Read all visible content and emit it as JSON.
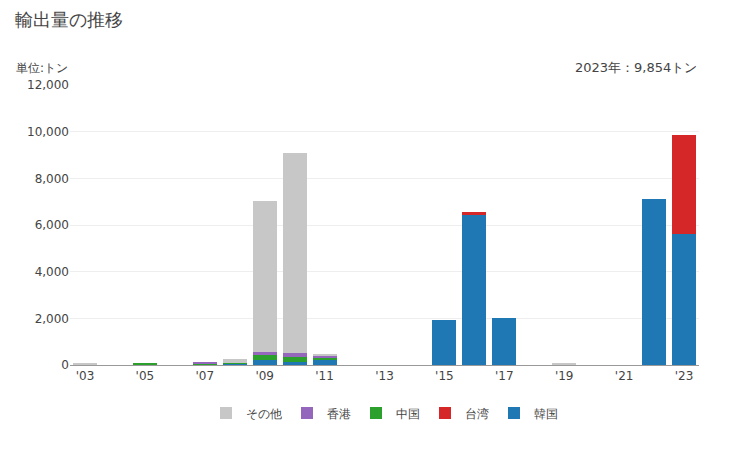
{
  "chart_data": {
    "type": "bar",
    "stacked": true,
    "title": "輸出量の推移",
    "subtitle": "単位:トン",
    "annotation": "2023年：9,854トン",
    "categories": [
      "'03",
      null,
      "'05",
      null,
      "'07",
      null,
      "'09",
      null,
      "'11",
      null,
      "'13",
      null,
      "'15",
      null,
      "'17",
      null,
      "'19",
      null,
      "'21",
      null,
      "'23"
    ],
    "series": [
      {
        "name": "韓国",
        "color": "#1F77B4",
        "values": [
          10,
          0,
          10,
          0,
          0,
          50,
          200,
          150,
          200,
          0,
          0,
          0,
          1950,
          6450,
          2000,
          0,
          0,
          0,
          0,
          7100,
          5600
        ]
      },
      {
        "name": "台湾",
        "color": "#D62728",
        "values": [
          0,
          0,
          0,
          0,
          0,
          0,
          0,
          0,
          0,
          0,
          0,
          0,
          0,
          100,
          0,
          0,
          0,
          0,
          0,
          0,
          4254
        ]
      },
      {
        "name": "中国",
        "color": "#2CA02C",
        "values": [
          0,
          0,
          80,
          0,
          30,
          50,
          250,
          200,
          100,
          0,
          0,
          0,
          0,
          0,
          0,
          0,
          0,
          0,
          0,
          0,
          0
        ]
      },
      {
        "name": "香港",
        "color": "#9467BD",
        "values": [
          0,
          0,
          0,
          0,
          100,
          0,
          100,
          150,
          100,
          0,
          0,
          0,
          0,
          0,
          0,
          0,
          0,
          0,
          0,
          0,
          0
        ]
      },
      {
        "name": "その他",
        "color": "#C7C7C7",
        "values": [
          50,
          0,
          0,
          0,
          0,
          150,
          6500,
          8600,
          50,
          0,
          0,
          0,
          0,
          0,
          0,
          0,
          50,
          0,
          0,
          0,
          0
        ]
      }
    ],
    "ylim": [
      0,
      12000
    ],
    "yticks": [
      0,
      {
        "value": 2000,
        "label": "2,000"
      },
      {
        "value": 4000,
        "label": "4,000"
      },
      {
        "value": 6000,
        "label": "6,000"
      },
      {
        "value": 8000,
        "label": "8,000"
      },
      {
        "value": 10000,
        "label": "10,000"
      },
      {
        "value": 12000,
        "label": "12,000"
      }
    ],
    "grid": true,
    "legend": "bottom"
  }
}
